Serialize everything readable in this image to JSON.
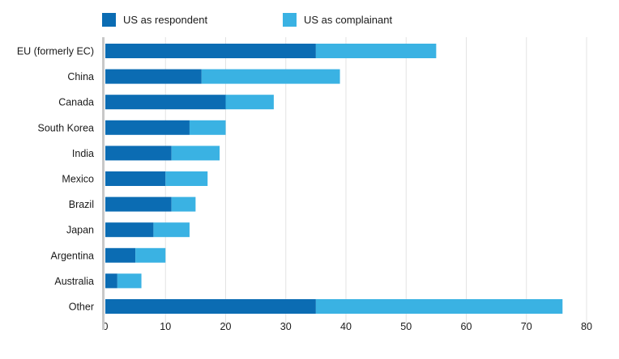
{
  "chart_data": {
    "type": "bar",
    "orientation": "horizontal",
    "stacked": true,
    "categories": [
      "EU (formerly EC)",
      "China",
      "Canada",
      "South Korea",
      "India",
      "Mexico",
      "Brazil",
      "Japan",
      "Argentina",
      "Australia",
      "Other"
    ],
    "series": [
      {
        "name": "US as respondent",
        "color": "#0b6cb3",
        "values": [
          35,
          16,
          20,
          14,
          11,
          10,
          11,
          8,
          5,
          2,
          35
        ]
      },
      {
        "name": "US as complainant",
        "color": "#3ab2e3",
        "values": [
          20,
          23,
          8,
          6,
          8,
          7,
          4,
          6,
          5,
          4,
          41
        ]
      }
    ],
    "xlim": [
      0,
      80
    ],
    "xticks": [
      0,
      10,
      20,
      30,
      40,
      50,
      60,
      70,
      80
    ],
    "grid": true,
    "legend_position": "top"
  }
}
